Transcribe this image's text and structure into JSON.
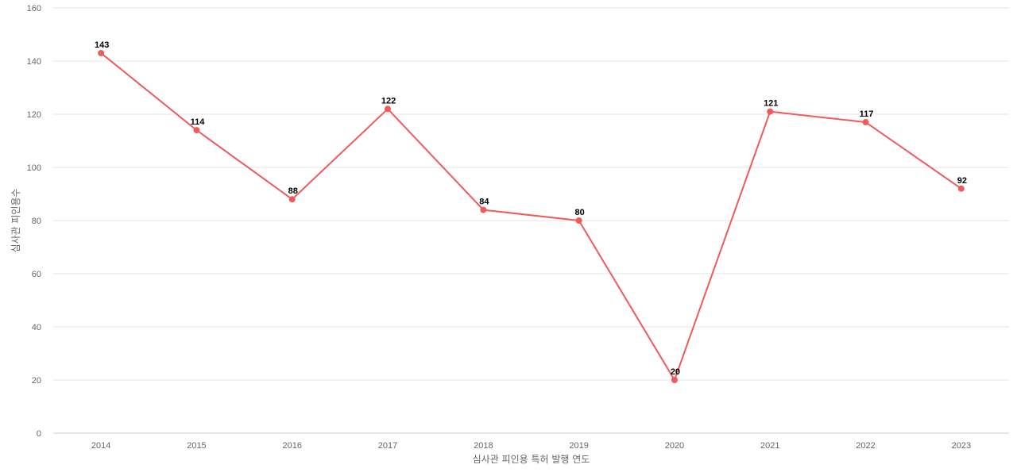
{
  "chart_data": {
    "type": "line",
    "title": "",
    "xlabel": "심사관 피인용 특허 발행 연도",
    "ylabel": "심사관 피인용수",
    "ylim": [
      0,
      160
    ],
    "y_ticks": [
      0,
      20,
      40,
      60,
      80,
      100,
      120,
      140,
      160
    ],
    "grid": true,
    "legend": "none",
    "categories": [
      "2014",
      "2015",
      "2016",
      "2017",
      "2018",
      "2019",
      "2020",
      "2021",
      "2022",
      "2023"
    ],
    "series": [
      {
        "color": "#f05a5a",
        "values": [
          143,
          114,
          88,
          122,
          84,
          80,
          20,
          121,
          117,
          92
        ]
      }
    ]
  }
}
